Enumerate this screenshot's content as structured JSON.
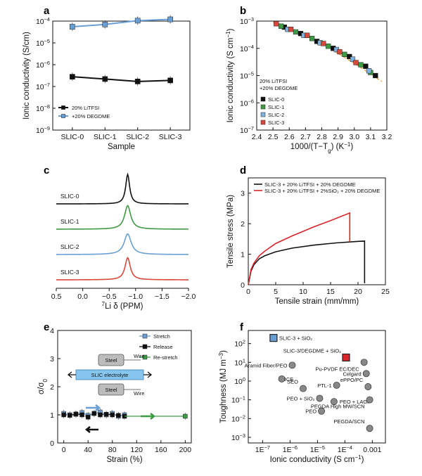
{
  "panel_labels": [
    "a",
    "b",
    "c",
    "d",
    "e",
    "f"
  ],
  "chart_data": [
    {
      "id": "a",
      "type": "line",
      "xlabel": "Sample",
      "ylabel": "Ionic conductivity (S/cm)",
      "categories": [
        "SLIC-0",
        "SLIC-1",
        "SLIC-2",
        "SLIC-3"
      ],
      "yscale": "log",
      "ylim": [
        1e-09,
        0.0001
      ],
      "yticks": [
        {
          "v": 1e-09,
          "base": "10",
          "exp": "−9"
        },
        {
          "v": 1e-08,
          "base": "10",
          "exp": "−8"
        },
        {
          "v": 1e-07,
          "base": "10",
          "exp": "−7"
        },
        {
          "v": 1e-06,
          "base": "10",
          "exp": "−6"
        },
        {
          "v": 1e-05,
          "base": "10",
          "exp": "−5"
        },
        {
          "v": 0.0001,
          "base": "10",
          "exp": "−4"
        }
      ],
      "legend": "lower-left",
      "series": [
        {
          "name": "20% LiTFSI",
          "color": "#111111",
          "marker": "square",
          "values": [
            2.8e-07,
            2.2e-07,
            1.7e-07,
            1.9e-07
          ]
        },
        {
          "name": "+20% DEGDME",
          "color": "#6a9fd4",
          "marker": "square",
          "values": [
            5.5e-05,
            7e-05,
            0.000105,
            0.00012
          ]
        }
      ]
    },
    {
      "id": "b",
      "type": "scatter",
      "xlabel": "1000/(T−T",
      "xlabel_sub": "g",
      "xlabel_tail": ") (K",
      "xlabel_sup": "−1",
      "xlabel_end": ")",
      "ylabel": "Ionic conductivity (S cm",
      "ylabel_sup": "−1",
      "ylabel_end": ")",
      "xlim": [
        2.4,
        3.2
      ],
      "xticks": [
        "2.4",
        "2.5",
        "2.6",
        "2.7",
        "2.8",
        "2.9",
        "3.0",
        "3.1",
        "3.2"
      ],
      "yscale": "log",
      "ylim": [
        1e-07,
        0.001
      ],
      "yticks": [
        {
          "v": 1e-07,
          "base": "10",
          "exp": "−7"
        },
        {
          "v": 1e-06,
          "base": "10",
          "exp": "−6"
        },
        {
          "v": 1e-05,
          "base": "10",
          "exp": "−5"
        },
        {
          "v": 0.0001,
          "base": "10",
          "exp": "−4"
        },
        {
          "v": 0.001,
          "base": "10",
          "exp": "−3"
        }
      ],
      "legend_title": [
        "20% LiTFSI",
        "+20% DEGDME"
      ],
      "legend": "left",
      "fit_line": {
        "color": "#e8a13a",
        "x": [
          2.5,
          3.17
        ],
        "y": [
          0.0009,
          6e-06
        ]
      },
      "series": [
        {
          "name": "SLIC-0",
          "color": "#111111",
          "x": [
            2.57,
            2.67,
            2.77,
            2.87,
            2.97,
            3.07,
            3.13
          ],
          "y": [
            0.0006,
            0.00035,
            0.00018,
            0.0001,
            5e-05,
            2.2e-05,
            1e-05
          ]
        },
        {
          "name": "SLIC-1",
          "color": "#3f9a45",
          "x": [
            2.55,
            2.64,
            2.74,
            2.84,
            2.94,
            3.04,
            3.1
          ],
          "y": [
            0.00065,
            0.0004,
            0.00023,
            0.00012,
            6e-05,
            2.5e-05,
            1.3e-05
          ]
        },
        {
          "name": "SLIC-2",
          "color": "#7fb2de",
          "x": [
            2.59,
            2.69,
            2.79,
            2.89,
            2.99,
            3.09
          ],
          "y": [
            0.0005,
            0.0003,
            0.00016,
            9e-05,
            4e-05,
            1.5e-05
          ]
        },
        {
          "name": "SLIC-3",
          "color": "#d9493b",
          "x": [
            2.52,
            2.61,
            2.71,
            2.81,
            2.91,
            3.01
          ],
          "y": [
            0.0008,
            0.0005,
            0.0003,
            0.00015,
            7.5e-05,
            3e-05
          ]
        }
      ]
    },
    {
      "id": "c",
      "type": "line",
      "xlabel_pre": "7",
      "xlabel": "Li δ (PPM)",
      "xlim": [
        0.5,
        -2.0
      ],
      "xticks": [
        "0.5",
        "0.0",
        "−0.5",
        "−1.0",
        "−1.5",
        "−2.0"
      ],
      "peak_center": -0.85,
      "series": [
        {
          "name": "SLIC-0",
          "color": "#111111",
          "peak_height": 1.0,
          "width": 0.045
        },
        {
          "name": "SLIC-1",
          "color": "#3f9a45",
          "peak_height": 0.8,
          "width": 0.07
        },
        {
          "name": "SLIC-2",
          "color": "#6a9fd4",
          "peak_height": 0.7,
          "width": 0.08
        },
        {
          "name": "SLIC-3",
          "color": "#d9493b",
          "peak_height": 0.75,
          "width": 0.06
        }
      ]
    },
    {
      "id": "d",
      "type": "line",
      "xlabel": "Tensile strain (mm/mm)",
      "ylabel": "Tensile stress (MPa)",
      "xlim": [
        0,
        25
      ],
      "ylim": [
        0,
        3.5
      ],
      "xticks": [
        "0",
        "5",
        "10",
        "15",
        "20",
        "25"
      ],
      "yticks": [
        "0",
        "1",
        "2",
        "3"
      ],
      "legend": "top",
      "series": [
        {
          "name": "SLIC-3 + 20% LiTFSI + 20% DEGDME",
          "color": "#111111",
          "x": [
            0,
            0.5,
            1,
            2,
            3,
            5,
            8,
            12,
            16,
            20,
            21.2,
            21.2
          ],
          "y": [
            0,
            0.45,
            0.65,
            0.85,
            0.95,
            1.08,
            1.2,
            1.3,
            1.37,
            1.42,
            1.43,
            0.05
          ]
        },
        {
          "name": "SLIC-3 + 20% LiTFSI + 2%SiO₂ + 20% DEGDME",
          "color": "#d8252b",
          "x": [
            0,
            0.5,
            1,
            2,
            3,
            5,
            8,
            12,
            15,
            18.5,
            18.5
          ],
          "y": [
            0,
            0.5,
            0.7,
            0.95,
            1.1,
            1.35,
            1.6,
            1.9,
            2.1,
            2.35,
            1.4
          ]
        }
      ]
    },
    {
      "id": "e",
      "type": "line",
      "xlabel": "Strain (%)",
      "ylabel": "σ/σ",
      "ylabel_sub": "0",
      "xlim": [
        -10,
        210
      ],
      "ylim": [
        0,
        4
      ],
      "xticks": [
        "0",
        "40",
        "80",
        "120",
        "160",
        "200"
      ],
      "yticks": [
        "0",
        "1",
        "2",
        "3",
        "4"
      ],
      "legend": "top-right",
      "inset": {
        "steel_top": "Steel",
        "steel_bottom": "Steel",
        "wire_top": "Wire",
        "wire_bottom": "Wire",
        "electrolyte": "SLIC electrolyte"
      },
      "series": [
        {
          "name": "Stretch",
          "color": "#6a9fd4",
          "x": [
            0,
            10,
            20,
            30,
            40,
            50,
            60,
            70,
            80,
            90,
            100
          ],
          "y": [
            1.05,
            1.0,
            1.02,
            1.08,
            0.98,
            1.05,
            1.1,
            1.0,
            1.05,
            0.95,
            1.0
          ]
        },
        {
          "name": "Release",
          "color": "#111111",
          "x": [
            100,
            90,
            80,
            70,
            60,
            50,
            40,
            30,
            20,
            10,
            0
          ],
          "y": [
            0.95,
            0.98,
            1.0,
            1.02,
            1.0,
            1.05,
            0.92,
            1.0,
            1.03,
            0.98,
            1.0
          ]
        },
        {
          "name": "Re-stretch",
          "color": "#3f9a45",
          "x": [
            100,
            200
          ],
          "y": [
            0.95,
            0.95
          ]
        }
      ]
    },
    {
      "id": "f",
      "type": "scatter",
      "xlabel": "Ionic conductivity (S cm",
      "xlabel_sup": "−1",
      "xlabel_end": ")",
      "ylabel": "Toughness (MJ m",
      "ylabel_sup": "−3",
      "ylabel_end": ")",
      "xscale": "log",
      "yscale": "log",
      "xlim": [
        3e-08,
        0.003
      ],
      "ylim": [
        0.0005,
        500
      ],
      "xticks": [
        {
          "v": 1e-07,
          "base": "1E",
          "exp": "−7"
        },
        {
          "v": 1e-06,
          "base": "1E",
          "exp": "−6"
        },
        {
          "v": 1e-05,
          "base": "1E",
          "exp": "−5"
        },
        {
          "v": 0.0001,
          "base": "1E",
          "exp": "−4"
        },
        {
          "v": 0.001,
          "base": "0.001",
          "exp": ""
        }
      ],
      "yticks": [
        {
          "v": 0.001,
          "base": "10",
          "exp": "−3"
        },
        {
          "v": 0.01,
          "base": "10",
          "exp": "−2"
        },
        {
          "v": 0.1,
          "base": "10",
          "exp": "−1"
        },
        {
          "v": 1.0,
          "base": "10",
          "exp": "0"
        },
        {
          "v": 10.0,
          "base": "10",
          "exp": "1"
        },
        {
          "v": 100.0,
          "base": "10",
          "exp": "2"
        }
      ],
      "points": [
        {
          "label": "SLIC-3 + SiO₂",
          "x": 2.5e-07,
          "y": 200,
          "color": "#6a9fd4",
          "shape": "square",
          "lx": 1,
          "ly": 0
        },
        {
          "label": "SLIC-3/DEGDME + SiO₂",
          "x": 0.00011,
          "y": 18,
          "color": "#d8252b",
          "shape": "square",
          "lx": -1,
          "ly": -1
        },
        {
          "label": "Aramid Fiber/PEO",
          "x": 1.2e-06,
          "y": 7,
          "color": "#888888",
          "shape": "circle",
          "lx": -1,
          "ly": 0
        },
        {
          "label": "Pu-PVDF EC/DEC",
          "x": 0.0005,
          "y": 10,
          "color": "#888888",
          "shape": "circle",
          "lx": -1,
          "ly": 1
        },
        {
          "label": "Celgard",
          "x": 0.0006,
          "y": 2.5,
          "color": "#888888",
          "shape": "circle",
          "lx": -1,
          "ly": 0
        },
        {
          "label": "ICE",
          "x": 5e-07,
          "y": 1.3,
          "color": "#888888",
          "shape": "circle",
          "lx": 0,
          "ly": 1
        },
        {
          "label": "SEO",
          "x": 3e-06,
          "y": 0.4,
          "color": "#888888",
          "shape": "circle",
          "lx": -1,
          "ly": -1
        },
        {
          "label": "PTL-1",
          "x": 5e-05,
          "y": 0.6,
          "color": "#888888",
          "shape": "circle",
          "lx": -1,
          "ly": 0
        },
        {
          "label": "ePPO/PC",
          "x": 0.0007,
          "y": 0.5,
          "color": "#888888",
          "shape": "circle",
          "lx": -1,
          "ly": -1
        },
        {
          "label": "PEO + SiO₂",
          "x": 1.2e-05,
          "y": 0.12,
          "color": "#888888",
          "shape": "circle",
          "lx": -1,
          "ly": 0
        },
        {
          "label": "PEO + LAGP",
          "x": 4e-05,
          "y": 0.08,
          "color": "#888888",
          "shape": "circle",
          "lx": 1,
          "ly": 0
        },
        {
          "label": "PEGDA High MW/SCN",
          "x": 0.0008,
          "y": 0.1,
          "color": "#888888",
          "shape": "circle",
          "lx": -1,
          "ly": 1
        },
        {
          "label": "PEO",
          "x": 1.4e-05,
          "y": 0.025,
          "color": "#888888",
          "shape": "circle",
          "lx": -1,
          "ly": 0
        },
        {
          "label": "PEGDA/SCN",
          "x": 0.0008,
          "y": 0.003,
          "color": "#888888",
          "shape": "circle",
          "lx": -1,
          "ly": -1
        }
      ]
    }
  ]
}
